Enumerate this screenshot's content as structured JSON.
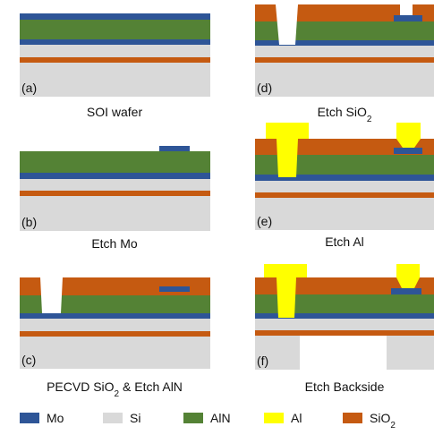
{
  "panels": [
    {
      "tag": "(a)",
      "caption": [
        "SOI wafer"
      ]
    },
    {
      "tag": "(b)",
      "caption": [
        "Etch Mo"
      ]
    },
    {
      "tag": "(c)",
      "caption": [
        "PECVD SiO",
        "2",
        " & Etch AlN"
      ]
    },
    {
      "tag": "(d)",
      "caption": [
        "Etch SiO",
        "2"
      ]
    },
    {
      "tag": "(e)",
      "caption": [
        "Etch Al"
      ]
    },
    {
      "tag": "(f)",
      "caption": [
        "Etch Backside"
      ]
    }
  ],
  "legend": [
    {
      "label": [
        "Mo"
      ]
    },
    {
      "label": [
        "Si"
      ]
    },
    {
      "label": [
        "AlN"
      ]
    },
    {
      "label": [
        "Al"
      ]
    },
    {
      "label": [
        "SiO",
        "2"
      ]
    }
  ]
}
